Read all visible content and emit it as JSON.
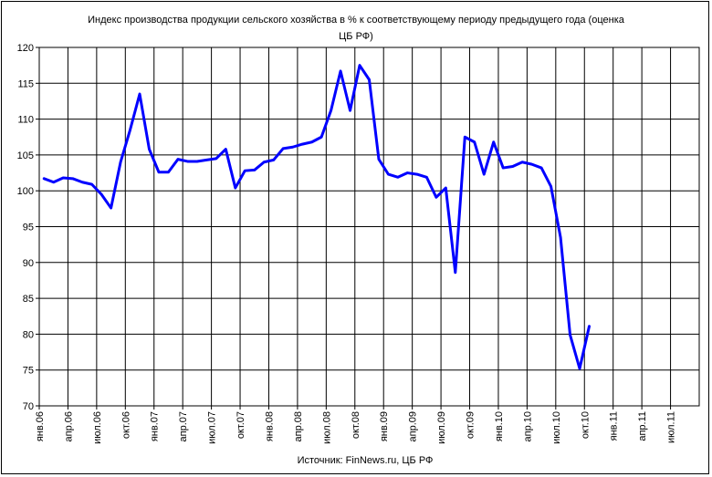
{
  "chart_data": {
    "type": "line",
    "title": "Индекс производства продукции сельского хозяйства в % к соответствующему периоду предыдущего года (оценка ЦБ РФ)",
    "title_lines": [
      "Индекс производства продукции сельского хозяйства в % к соответствующему периоду предыдущего года (оценка",
      "ЦБ РФ)"
    ],
    "source": "Источник: FinNews.ru, ЦБ РФ",
    "xlabel": "",
    "ylabel": "",
    "ylim": [
      70,
      120
    ],
    "yticks": [
      70,
      75,
      80,
      85,
      90,
      95,
      100,
      105,
      110,
      115,
      120
    ],
    "x_tick_labels": [
      "янв.06",
      "апр.06",
      "июл.06",
      "окт.06",
      "янв.07",
      "апр.07",
      "июл.07",
      "окт.07",
      "янв.08",
      "апр.08",
      "июл.08",
      "окт.08",
      "янв.09",
      "апр.09",
      "июл.09",
      "окт.09",
      "янв.10",
      "апр.10",
      "июл.10",
      "окт.10",
      "янв.11",
      "апр.11",
      "июл.11"
    ],
    "grid": true,
    "line_color": "#0000ff",
    "series": [
      {
        "values": [
          101.7,
          101.2,
          101.8,
          101.7,
          101.2,
          100.9,
          99.5,
          97.6,
          104.0,
          108.5,
          113.5,
          105.8,
          102.6,
          102.6,
          104.4,
          104.1,
          104.1,
          104.3,
          104.5,
          105.8,
          100.4,
          102.8,
          102.9,
          104.0,
          104.3,
          105.9,
          106.1,
          106.5,
          106.8,
          107.5,
          111.2,
          116.7,
          111.2,
          117.5,
          115.5,
          104.4,
          102.3,
          101.9,
          102.5,
          102.3,
          101.9,
          99.1,
          100.4,
          88.6,
          107.5,
          106.8,
          102.3,
          106.8,
          103.2,
          103.4,
          104.0,
          103.7,
          103.2,
          100.6,
          93.5,
          79.9,
          75.2,
          81.1
        ]
      }
    ]
  }
}
